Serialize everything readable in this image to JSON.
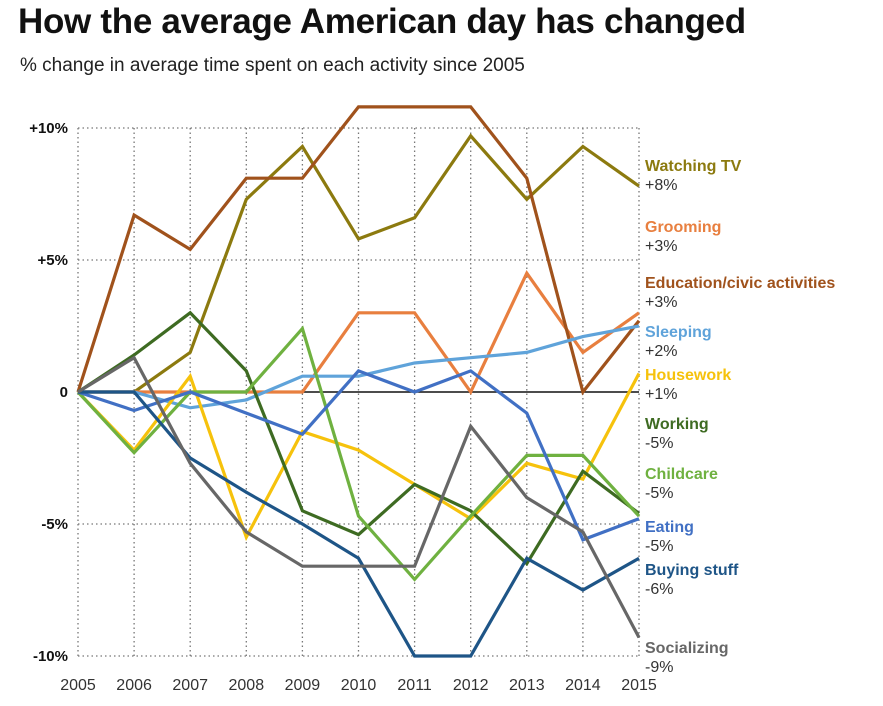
{
  "title": "How the average American day has changed",
  "subtitle": "% change in average time spent on each activity since 2005",
  "chart_data": {
    "type": "line",
    "x": [
      2005,
      2006,
      2007,
      2008,
      2009,
      2010,
      2011,
      2012,
      2013,
      2014,
      2015
    ],
    "xlim": [
      2005,
      2015
    ],
    "ylim": [
      -10,
      10
    ],
    "y_ticks": [
      10,
      5,
      0,
      -5,
      -10
    ],
    "y_tick_labels": [
      "+10%",
      "+5%",
      "0",
      "-5%",
      "-10%"
    ],
    "x_tick_labels": [
      "2005",
      "2006",
      "2007",
      "2008",
      "2009",
      "2010",
      "2011",
      "2012",
      "2013",
      "2014",
      "2015"
    ],
    "grid": "dotted",
    "legend": "labels at right end of lines",
    "series": [
      {
        "name": "Watching TV",
        "change": "+8%",
        "color": "#8c7a0f",
        "values": [
          0,
          0,
          1.5,
          7.3,
          9.3,
          5.8,
          6.6,
          9.7,
          7.3,
          9.3,
          7.8
        ]
      },
      {
        "name": "Grooming",
        "change": "+3%",
        "color": "#e87f3f",
        "values": [
          0,
          0,
          0,
          0,
          0,
          3,
          3,
          0,
          4.5,
          1.5,
          3
        ]
      },
      {
        "name": "Education/civic activities",
        "change": "+3%",
        "color": "#a0521c",
        "values": [
          0,
          6.7,
          5.4,
          8.1,
          8.1,
          10.8,
          10.8,
          10.8,
          8.1,
          0,
          2.7
        ]
      },
      {
        "name": "Sleeping",
        "change": "+2%",
        "color": "#5fa3da",
        "values": [
          0,
          0,
          -0.6,
          -0.3,
          0.6,
          0.6,
          1.1,
          1.3,
          1.5,
          2.1,
          2.5
        ]
      },
      {
        "name": "Housework",
        "change": "+1%",
        "color": "#f6c20c",
        "values": [
          0,
          -2.2,
          0.6,
          -5.5,
          -1.5,
          -2.2,
          -3.5,
          -4.8,
          -2.7,
          -3.3,
          0.7
        ]
      },
      {
        "name": "Working",
        "change": "-5%",
        "color": "#3e6b22",
        "values": [
          0,
          1.4,
          3,
          0.8,
          -4.5,
          -5.4,
          -3.5,
          -4.5,
          -6.5,
          -3,
          -4.6
        ]
      },
      {
        "name": "Childcare",
        "change": "-5%",
        "color": "#6fb140",
        "values": [
          0,
          -2.3,
          0,
          0,
          2.4,
          -4.7,
          -7.1,
          -4.7,
          -2.4,
          -2.4,
          -4.7
        ]
      },
      {
        "name": "Eating",
        "change": "-5%",
        "color": "#4170c4",
        "values": [
          0,
          -0.7,
          0,
          -0.8,
          -1.6,
          0.8,
          0,
          0.8,
          -0.8,
          -5.6,
          -4.8
        ]
      },
      {
        "name": "Buying stuff",
        "change": "-6%",
        "color": "#1e5587",
        "values": [
          0,
          0,
          -2.5,
          -3.8,
          -5,
          -6.3,
          -10,
          -10,
          -6.3,
          -7.5,
          -6.3
        ]
      },
      {
        "name": "Socializing",
        "change": "-9%",
        "color": "#676767",
        "values": [
          0,
          1.3,
          -2.7,
          -5.3,
          -6.6,
          -6.6,
          -6.6,
          -1.3,
          -4,
          -5.3,
          -9.3
        ]
      }
    ]
  }
}
